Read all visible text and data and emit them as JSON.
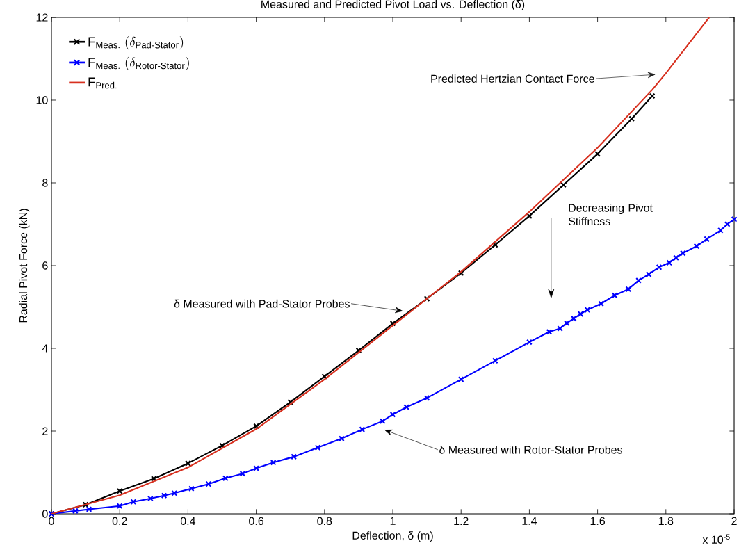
{
  "chart_data": {
    "type": "line",
    "title": "Measured and Predicted Pivot Load vs. Deflection (δ)",
    "xlabel": "Deflection, δ (m)",
    "ylabel": "Radial Pivot Force (kN)",
    "xlim": [
      0,
      2
    ],
    "ylim": [
      0,
      12
    ],
    "xticks": [
      0,
      0.2,
      0.4,
      0.6,
      0.8,
      1,
      1.2,
      1.4,
      1.6,
      1.8,
      2
    ],
    "yticks": [
      0,
      2,
      4,
      6,
      8,
      10,
      12
    ],
    "legend": "top left",
    "series": [
      {
        "name": "\\mathrm{F}_{\\mathrm{Meas.}}\\ (\\delta_{\\text{Pad-Stator}})",
        "color": "#000000",
        "marker": "cross",
        "x": [
          0,
          0.1,
          0.2,
          0.3,
          0.4,
          0.5,
          0.6,
          0.7,
          0.8,
          0.9,
          1.0,
          1.1,
          1.2,
          1.3,
          1.4,
          1.5,
          1.6,
          1.7,
          1.76
        ],
        "values": [
          0,
          0.22,
          0.55,
          0.85,
          1.22,
          1.65,
          2.12,
          2.7,
          3.32,
          3.95,
          4.6,
          5.2,
          5.82,
          6.5,
          7.2,
          7.95,
          8.7,
          9.55,
          10.1
        ]
      },
      {
        "name": "\\mathrm{F}_{\\mathrm{Meas.}}\\ (\\delta_{\\text{Rotor-Stator}})",
        "color": "#0000ff",
        "marker": "cross",
        "x": [
          0,
          0.07,
          0.11,
          0.2,
          0.24,
          0.29,
          0.33,
          0.36,
          0.41,
          0.46,
          0.51,
          0.56,
          0.6,
          0.65,
          0.71,
          0.78,
          0.85,
          0.91,
          0.97,
          1.0,
          1.04,
          1.1,
          1.2,
          1.3,
          1.4,
          1.458,
          1.49,
          1.51,
          1.53,
          1.55,
          1.57,
          1.61,
          1.65,
          1.69,
          1.72,
          1.75,
          1.78,
          1.81,
          1.83,
          1.85,
          1.89,
          1.92,
          1.96,
          1.98,
          2.0
        ],
        "values": [
          0,
          0.07,
          0.11,
          0.19,
          0.29,
          0.37,
          0.44,
          0.5,
          0.61,
          0.72,
          0.86,
          0.97,
          1.1,
          1.24,
          1.38,
          1.6,
          1.82,
          2.04,
          2.24,
          2.4,
          2.58,
          2.8,
          3.25,
          3.7,
          4.15,
          4.4,
          4.48,
          4.61,
          4.72,
          4.83,
          4.93,
          5.08,
          5.28,
          5.43,
          5.64,
          5.79,
          5.96,
          6.07,
          6.19,
          6.3,
          6.47,
          6.64,
          6.85,
          7.0,
          7.12
        ]
      },
      {
        "name": "\\mathrm{F}_{\\mathrm{Pred.}}",
        "color": "#d7301f",
        "marker": "none",
        "x": [
          0,
          0.2,
          0.4,
          0.6,
          0.8,
          1.0,
          1.2,
          1.4,
          1.6,
          1.76,
          1.8,
          1.927
        ],
        "values": [
          0,
          0.45,
          1.12,
          2.05,
          3.25,
          4.55,
          5.85,
          7.3,
          8.85,
          10.25,
          10.65,
          12
        ]
      }
    ],
    "annotations": [
      "Predicted Hertzian Contact Force",
      {
        "text": "δ Measured with Pad-Stator Probes",
        "x": 1.03,
        "y": 4.9
      },
      "δ Measured with Rotor-Stator Probes",
      "Decreasing Pivot Stiffness",
      "x 10$^{-5}$"
    ]
  }
}
